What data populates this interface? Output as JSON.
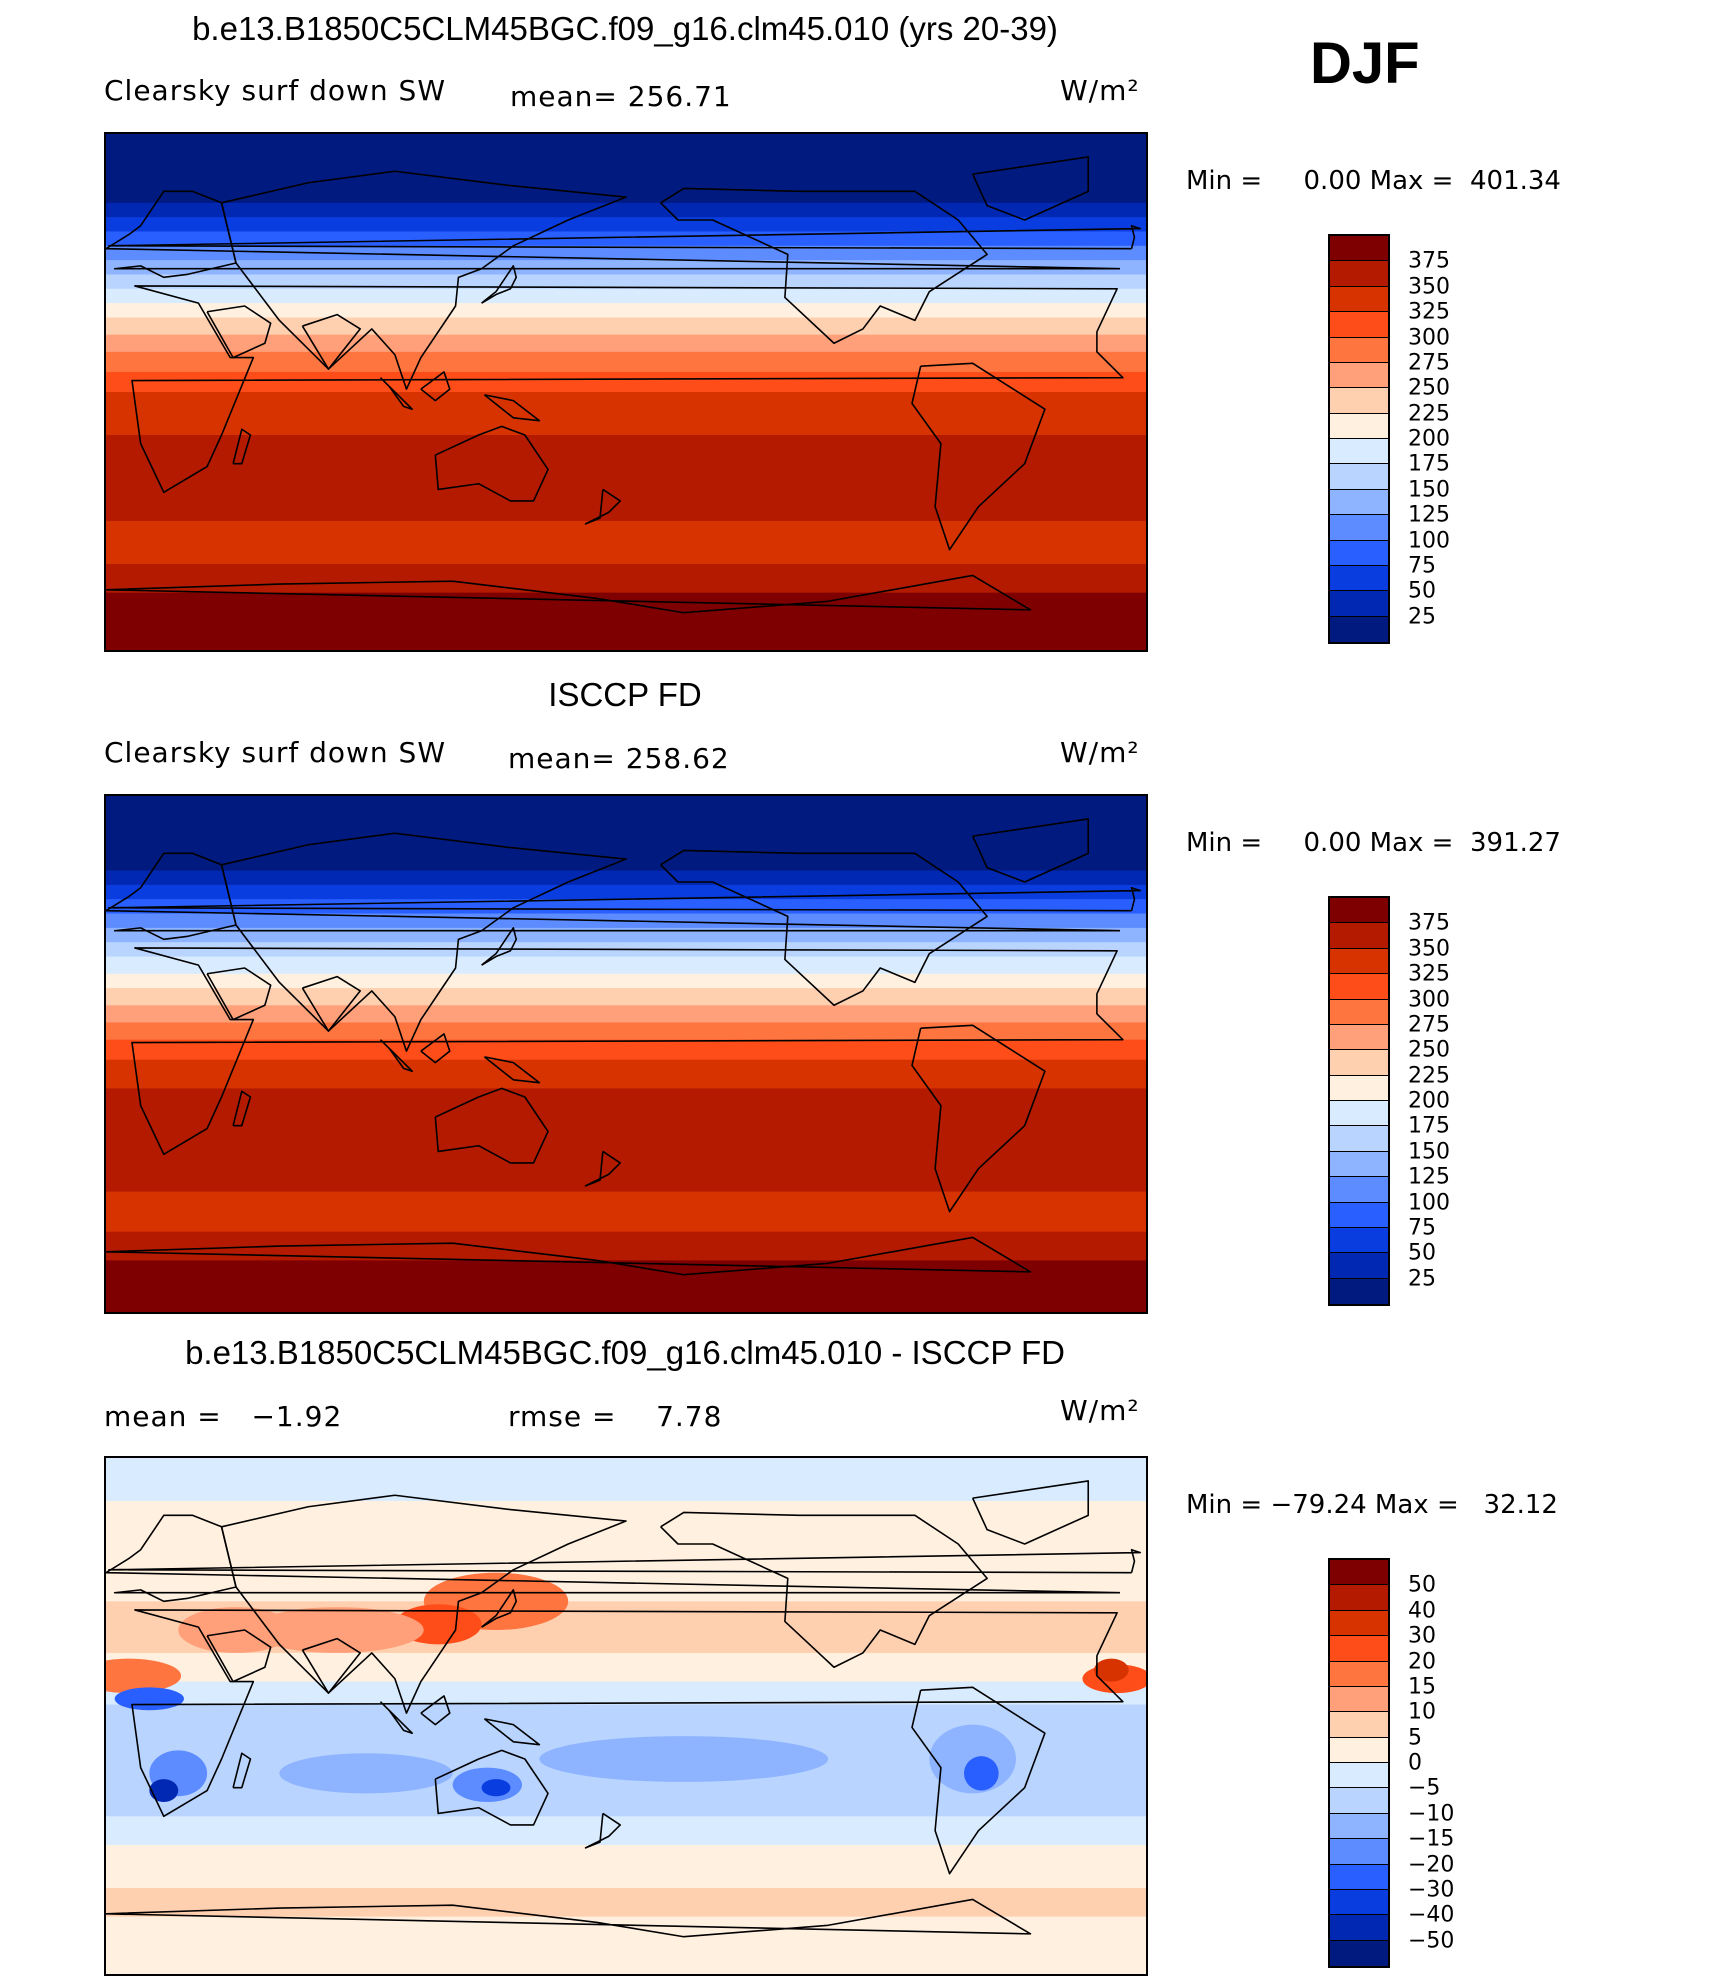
{
  "season": "DJF",
  "panels": [
    {
      "title": "b.e13.B1850C5CLM45BGC.f09_g16.clm45.010 (yrs 20-39)",
      "left_label": "Clearsky surf down SW",
      "center_label": "mean= 256.71",
      "units": "W/m²",
      "min_max": "Min =     0.00 Max =  401.34",
      "colorbar": {
        "colors": [
          "#7f0000",
          "#b31a00",
          "#d63300",
          "#ff4d1a",
          "#ff7540",
          "#ffa07a",
          "#ffd0b0",
          "#fff0e0",
          "#d9ecff",
          "#b8d4ff",
          "#8fb4ff",
          "#5c8cff",
          "#2a5fff",
          "#0a3de0",
          "#0028b3",
          "#001a80"
        ],
        "ticks": [
          "375",
          "350",
          "325",
          "300",
          "275",
          "250",
          "225",
          "200",
          "175",
          "150",
          "125",
          "100",
          "75",
          "50",
          "25"
        ]
      },
      "zonal_bands": [
        {
          "lat": 90,
          "color": "#001a80"
        },
        {
          "lat": 72,
          "color": "#001a80"
        },
        {
          "lat": 66,
          "color": "#0028b3"
        },
        {
          "lat": 61,
          "color": "#0a3de0"
        },
        {
          "lat": 56,
          "color": "#2a5fff"
        },
        {
          "lat": 51,
          "color": "#5c8cff"
        },
        {
          "lat": 46,
          "color": "#8fb4ff"
        },
        {
          "lat": 41,
          "color": "#b8d4ff"
        },
        {
          "lat": 36,
          "color": "#d9ecff"
        },
        {
          "lat": 31,
          "color": "#fff0e0"
        },
        {
          "lat": 26,
          "color": "#ffd0b0"
        },
        {
          "lat": 20,
          "color": "#ffa07a"
        },
        {
          "lat": 14,
          "color": "#ff7540"
        },
        {
          "lat": 7,
          "color": "#ff4d1a"
        },
        {
          "lat": 0,
          "color": "#d63300"
        },
        {
          "lat": -15,
          "color": "#b31a00"
        },
        {
          "lat": -45,
          "color": "#d63300"
        },
        {
          "lat": -60,
          "color": "#b31a00"
        },
        {
          "lat": -70,
          "color": "#7f0000"
        },
        {
          "lat": -90,
          "color": "#7f0000"
        }
      ]
    },
    {
      "title": "ISCCP FD",
      "left_label": "Clearsky surf down SW",
      "center_label": "mean= 258.62",
      "units": "W/m²",
      "min_max": "Min =     0.00 Max =  391.27",
      "colorbar": {
        "colors": [
          "#7f0000",
          "#b31a00",
          "#d63300",
          "#ff4d1a",
          "#ff7540",
          "#ffa07a",
          "#ffd0b0",
          "#fff0e0",
          "#d9ecff",
          "#b8d4ff",
          "#8fb4ff",
          "#5c8cff",
          "#2a5fff",
          "#0a3de0",
          "#0028b3",
          "#001a80"
        ],
        "ticks": [
          "375",
          "350",
          "325",
          "300",
          "275",
          "250",
          "225",
          "200",
          "175",
          "150",
          "125",
          "100",
          "75",
          "50",
          "25"
        ]
      },
      "zonal_bands": [
        {
          "lat": 90,
          "color": "#001a80"
        },
        {
          "lat": 70,
          "color": "#001a80"
        },
        {
          "lat": 64,
          "color": "#0028b3"
        },
        {
          "lat": 59,
          "color": "#0a3de0"
        },
        {
          "lat": 54,
          "color": "#2a5fff"
        },
        {
          "lat": 49,
          "color": "#5c8cff"
        },
        {
          "lat": 44,
          "color": "#8fb4ff"
        },
        {
          "lat": 39,
          "color": "#b8d4ff"
        },
        {
          "lat": 34,
          "color": "#d9ecff"
        },
        {
          "lat": 28,
          "color": "#fff0e0"
        },
        {
          "lat": 23,
          "color": "#ffd0b0"
        },
        {
          "lat": 17,
          "color": "#ffa07a"
        },
        {
          "lat": 11,
          "color": "#ff7540"
        },
        {
          "lat": 5,
          "color": "#ff4d1a"
        },
        {
          "lat": -2,
          "color": "#d63300"
        },
        {
          "lat": -12,
          "color": "#b31a00"
        },
        {
          "lat": -48,
          "color": "#d63300"
        },
        {
          "lat": -62,
          "color": "#b31a00"
        },
        {
          "lat": -72,
          "color": "#7f0000"
        },
        {
          "lat": -90,
          "color": "#7f0000"
        }
      ]
    },
    {
      "title": "b.e13.B1850C5CLM45BGC.f09_g16.clm45.010 - ISCCP FD",
      "left_label": "mean =   −1.92",
      "center_label": "rmse =    7.78",
      "units": "W/m²",
      "min_max": "Min = −79.24 Max =   32.12",
      "colorbar": {
        "colors": [
          "#7f0000",
          "#b31a00",
          "#d63300",
          "#ff4d1a",
          "#ff7540",
          "#ffa07a",
          "#ffd0b0",
          "#fff0e0",
          "#d9ecff",
          "#b8d4ff",
          "#8fb4ff",
          "#5c8cff",
          "#2a5fff",
          "#0a3de0",
          "#0028b3",
          "#001a80"
        ],
        "ticks": [
          "50",
          "40",
          "30",
          "20",
          "15",
          "10",
          "5",
          "0",
          "−5",
          "−10",
          "−15",
          "−20",
          "−30",
          "−40",
          "−50"
        ]
      },
      "zonal_bands": [
        {
          "lat": 90,
          "color": "#d9ecff"
        },
        {
          "lat": 75,
          "color": "#fff0e0"
        },
        {
          "lat": 40,
          "color": "#ffd0b0"
        },
        {
          "lat": 22,
          "color": "#fff0e0"
        },
        {
          "lat": 12,
          "color": "#d9ecff"
        },
        {
          "lat": 4,
          "color": "#b8d4ff"
        },
        {
          "lat": -35,
          "color": "#d9ecff"
        },
        {
          "lat": -45,
          "color": "#fff0e0"
        },
        {
          "lat": -60,
          "color": "#ffd0b0"
        },
        {
          "lat": -70,
          "color": "#fff0e0"
        },
        {
          "lat": -90,
          "color": "#fff0e0"
        }
      ],
      "anomaly_patches": [
        {
          "lon": 135,
          "lat": 40,
          "rx": 25,
          "ry": 10,
          "color": "#ff7540"
        },
        {
          "lon": 115,
          "lat": 32,
          "rx": 15,
          "ry": 7,
          "color": "#ff4d1a"
        },
        {
          "lon": 80,
          "lat": 30,
          "rx": 30,
          "ry": 8,
          "color": "#ffa07a"
        },
        {
          "lon": 45,
          "lat": 30,
          "rx": 20,
          "ry": 8,
          "color": "#ffa07a"
        },
        {
          "lon": 8,
          "lat": 14,
          "rx": 18,
          "ry": 6,
          "color": "#ff7540"
        },
        {
          "lon": 350,
          "lat": 13,
          "rx": 12,
          "ry": 5,
          "color": "#ff4d1a"
        },
        {
          "lon": 348,
          "lat": 16,
          "rx": 6,
          "ry": 4,
          "color": "#d63300"
        },
        {
          "lon": 15,
          "lat": 6,
          "rx": 12,
          "ry": 4,
          "color": "#2a5fff"
        },
        {
          "lon": 25,
          "lat": -20,
          "rx": 10,
          "ry": 8,
          "color": "#5c8cff"
        },
        {
          "lon": 20,
          "lat": -26,
          "rx": 5,
          "ry": 4,
          "color": "#0028b3"
        },
        {
          "lon": 132,
          "lat": -24,
          "rx": 12,
          "ry": 6,
          "color": "#5c8cff"
        },
        {
          "lon": 135,
          "lat": -25,
          "rx": 5,
          "ry": 3,
          "color": "#0a3de0"
        },
        {
          "lon": 300,
          "lat": -15,
          "rx": 15,
          "ry": 12,
          "color": "#8fb4ff"
        },
        {
          "lon": 303,
          "lat": -20,
          "rx": 6,
          "ry": 6,
          "color": "#2a5fff"
        },
        {
          "lon": 200,
          "lat": -15,
          "rx": 50,
          "ry": 8,
          "color": "#8fb4ff"
        },
        {
          "lon": 90,
          "lat": -20,
          "rx": 30,
          "ry": 7,
          "color": "#8fb4ff"
        }
      ]
    }
  ],
  "coastlines": [
    {
      "name": "africa",
      "pts": [
        [
          -17,
          21
        ],
        [
          -10,
          36
        ],
        [
          10,
          37
        ],
        [
          32,
          31
        ],
        [
          43,
          12
        ],
        [
          51,
          12
        ],
        [
          40,
          -15
        ],
        [
          35,
          -26
        ],
        [
          20,
          -35
        ],
        [
          12,
          -18
        ],
        [
          9,
          4
        ],
        [
          -8,
          5
        ],
        [
          -17,
          14
        ]
      ]
    },
    {
      "name": "europe",
      "pts": [
        [
          -9,
          43
        ],
        [
          0,
          50
        ],
        [
          8,
          55
        ],
        [
          12,
          58
        ],
        [
          20,
          70
        ],
        [
          30,
          70
        ],
        [
          40,
          66
        ],
        [
          45,
          45
        ],
        [
          28,
          41
        ],
        [
          20,
          40
        ],
        [
          12,
          44
        ],
        [
          3,
          43
        ]
      ]
    },
    {
      "name": "asia",
      "pts": [
        [
          45,
          45
        ],
        [
          60,
          25
        ],
        [
          77,
          8
        ],
        [
          92,
          22
        ],
        [
          100,
          13
        ],
        [
          104,
          1
        ],
        [
          109,
          12
        ],
        [
          121,
          30
        ],
        [
          122,
          40
        ],
        [
          130,
          43
        ],
        [
          141,
          51
        ],
        [
          160,
          60
        ],
        [
          180,
          68
        ],
        [
          140,
          72
        ],
        [
          100,
          77
        ],
        [
          70,
          73
        ],
        [
          40,
          66
        ]
      ]
    },
    {
      "name": "arabia",
      "pts": [
        [
          35,
          28
        ],
        [
          44,
          12
        ],
        [
          55,
          17
        ],
        [
          57,
          24
        ],
        [
          48,
          30
        ]
      ]
    },
    {
      "name": "india",
      "pts": [
        [
          68,
          23
        ],
        [
          77,
          8
        ],
        [
          88,
          22
        ],
        [
          80,
          27
        ]
      ]
    },
    {
      "name": "australia",
      "pts": [
        [
          114,
          -22
        ],
        [
          129,
          -15
        ],
        [
          137,
          -12
        ],
        [
          145,
          -15
        ],
        [
          153,
          -27
        ],
        [
          148,
          -38
        ],
        [
          140,
          -38
        ],
        [
          129,
          -32
        ],
        [
          115,
          -34
        ]
      ]
    },
    {
      "name": "north-america",
      "pts": [
        [
          192,
          66
        ],
        [
          200,
          71
        ],
        [
          240,
          70
        ],
        [
          280,
          70
        ],
        [
          295,
          60
        ],
        [
          305,
          48
        ],
        [
          285,
          35
        ],
        [
          280,
          25
        ],
        [
          268,
          30
        ],
        [
          262,
          22
        ],
        [
          252,
          17
        ],
        [
          235,
          33
        ],
        [
          236,
          48
        ],
        [
          210,
          60
        ],
        [
          198,
          60
        ]
      ]
    },
    {
      "name": "south-america",
      "pts": [
        [
          282,
          9
        ],
        [
          300,
          10
        ],
        [
          325,
          -6
        ],
        [
          318,
          -25
        ],
        [
          302,
          -40
        ],
        [
          292,
          -55
        ],
        [
          287,
          -40
        ],
        [
          289,
          -18
        ],
        [
          279,
          -4
        ]
      ]
    },
    {
      "name": "greenland",
      "pts": [
        [
          300,
          76
        ],
        [
          340,
          82
        ],
        [
          340,
          70
        ],
        [
          318,
          60
        ],
        [
          305,
          65
        ]
      ]
    },
    {
      "name": "antarctica",
      "pts": [
        [
          0,
          -69
        ],
        [
          60,
          -67
        ],
        [
          120,
          -66
        ],
        [
          170,
          -72
        ],
        [
          200,
          -77
        ],
        [
          250,
          -73
        ],
        [
          300,
          -64
        ],
        [
          320,
          -76
        ],
        [
          360,
          -69
        ]
      ]
    },
    {
      "name": "japan",
      "pts": [
        [
          130,
          31
        ],
        [
          135,
          34
        ],
        [
          140,
          36
        ],
        [
          142,
          40
        ],
        [
          141,
          44
        ],
        [
          139,
          41
        ],
        [
          135,
          35
        ]
      ]
    },
    {
      "name": "madagascar",
      "pts": [
        [
          44,
          -25
        ],
        [
          47,
          -13
        ],
        [
          50,
          -15
        ],
        [
          47,
          -25
        ]
      ]
    },
    {
      "name": "borneo",
      "pts": [
        [
          109,
          1
        ],
        [
          117,
          7
        ],
        [
          119,
          1
        ],
        [
          114,
          -3
        ]
      ]
    },
    {
      "name": "sumatra",
      "pts": [
        [
          95,
          5
        ],
        [
          106,
          -6
        ],
        [
          103,
          -5
        ],
        [
          98,
          2
        ]
      ]
    },
    {
      "name": "new-guinea",
      "pts": [
        [
          131,
          -1
        ],
        [
          141,
          -3
        ],
        [
          150,
          -10
        ],
        [
          141,
          -9
        ]
      ]
    },
    {
      "name": "new-zealand",
      "pts": [
        [
          172,
          -34
        ],
        [
          178,
          -38
        ],
        [
          174,
          -42
        ],
        [
          166,
          -46
        ],
        [
          171,
          -44
        ]
      ]
    },
    {
      "name": "uk",
      "pts": [
        [
          -5,
          50
        ],
        [
          1,
          51
        ],
        [
          -2,
          57
        ],
        [
          -5,
          58
        ],
        [
          -4,
          54
        ]
      ]
    }
  ]
}
